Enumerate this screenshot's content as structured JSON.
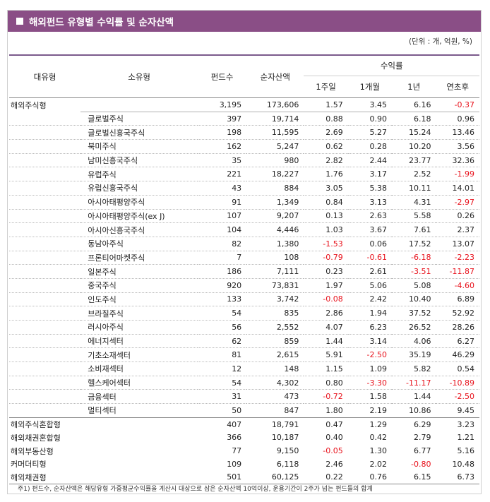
{
  "title": "해외펀드 유형별 수익률 및 순자산액",
  "unit": "(단위 : 개, 억원, %)",
  "headers": {
    "major": "대유형",
    "minor": "소유형",
    "funds": "펀드수",
    "assets": "순자산액",
    "returns": "수익률",
    "w1": "1주일",
    "m1": "1개월",
    "y1": "1년",
    "ytd": "연초후"
  },
  "rows": [
    {
      "major": "해외주식형",
      "minor": "",
      "funds": "3,195",
      "assets": "173,606",
      "w1": "1.57",
      "m1": "3.45",
      "y1": "6.16",
      "ytd": "-0.37"
    },
    {
      "major": "",
      "minor": "글로벌주식",
      "funds": "397",
      "assets": "19,714",
      "w1": "0.88",
      "m1": "0.90",
      "y1": "6.18",
      "ytd": "0.96"
    },
    {
      "major": "",
      "minor": "글로벌신흥국주식",
      "funds": "198",
      "assets": "11,595",
      "w1": "2.69",
      "m1": "5.27",
      "y1": "15.24",
      "ytd": "13.46"
    },
    {
      "major": "",
      "minor": "북미주식",
      "funds": "162",
      "assets": "5,247",
      "w1": "0.62",
      "m1": "0.28",
      "y1": "10.20",
      "ytd": "3.56"
    },
    {
      "major": "",
      "minor": "남미신흥국주식",
      "funds": "35",
      "assets": "980",
      "w1": "2.82",
      "m1": "2.44",
      "y1": "23.77",
      "ytd": "32.36"
    },
    {
      "major": "",
      "minor": "유럽주식",
      "funds": "221",
      "assets": "18,227",
      "w1": "1.76",
      "m1": "3.17",
      "y1": "2.52",
      "ytd": "-1.99"
    },
    {
      "major": "",
      "minor": "유럽신흥국주식",
      "funds": "43",
      "assets": "884",
      "w1": "3.05",
      "m1": "5.38",
      "y1": "10.11",
      "ytd": "14.01"
    },
    {
      "major": "",
      "minor": "아시아태평양주식",
      "funds": "91",
      "assets": "1,349",
      "w1": "0.84",
      "m1": "3.13",
      "y1": "4.31",
      "ytd": "-2.97"
    },
    {
      "major": "",
      "minor": "아시아태평양주식(ex J)",
      "funds": "107",
      "assets": "9,207",
      "w1": "0.13",
      "m1": "2.63",
      "y1": "5.58",
      "ytd": "0.26"
    },
    {
      "major": "",
      "minor": "아시아신흥국주식",
      "funds": "104",
      "assets": "4,446",
      "w1": "1.03",
      "m1": "3.67",
      "y1": "7.61",
      "ytd": "2.37"
    },
    {
      "major": "",
      "minor": "동남아주식",
      "funds": "82",
      "assets": "1,380",
      "w1": "-1.53",
      "m1": "0.06",
      "y1": "17.52",
      "ytd": "13.07"
    },
    {
      "major": "",
      "minor": "프론티어마켓주식",
      "funds": "7",
      "assets": "108",
      "w1": "-0.79",
      "m1": "-0.61",
      "y1": "-6.18",
      "ytd": "-2.23"
    },
    {
      "major": "",
      "minor": "일본주식",
      "funds": "186",
      "assets": "7,111",
      "w1": "0.23",
      "m1": "2.61",
      "y1": "-3.51",
      "ytd": "-11.87"
    },
    {
      "major": "",
      "minor": "중국주식",
      "funds": "920",
      "assets": "73,831",
      "w1": "1.97",
      "m1": "5.06",
      "y1": "5.08",
      "ytd": "-4.60"
    },
    {
      "major": "",
      "minor": "인도주식",
      "funds": "133",
      "assets": "3,742",
      "w1": "-0.08",
      "m1": "2.42",
      "y1": "10.40",
      "ytd": "6.89"
    },
    {
      "major": "",
      "minor": "브라질주식",
      "funds": "54",
      "assets": "835",
      "w1": "2.86",
      "m1": "1.94",
      "y1": "37.52",
      "ytd": "52.92"
    },
    {
      "major": "",
      "minor": "러시아주식",
      "funds": "56",
      "assets": "2,552",
      "w1": "4.07",
      "m1": "6.23",
      "y1": "26.52",
      "ytd": "28.26"
    },
    {
      "major": "",
      "minor": "에너지섹터",
      "funds": "62",
      "assets": "859",
      "w1": "1.44",
      "m1": "3.14",
      "y1": "4.06",
      "ytd": "6.27"
    },
    {
      "major": "",
      "minor": "기초소재섹터",
      "funds": "81",
      "assets": "2,615",
      "w1": "5.91",
      "m1": "-2.50",
      "y1": "35.19",
      "ytd": "46.29"
    },
    {
      "major": "",
      "minor": "소비재섹터",
      "funds": "12",
      "assets": "148",
      "w1": "1.15",
      "m1": "1.09",
      "y1": "5.82",
      "ytd": "0.54"
    },
    {
      "major": "",
      "minor": "헬스케어섹터",
      "funds": "54",
      "assets": "4,302",
      "w1": "0.80",
      "m1": "-3.30",
      "y1": "-11.17",
      "ytd": "-10.89"
    },
    {
      "major": "",
      "minor": "금융섹터",
      "funds": "31",
      "assets": "473",
      "w1": "-0.72",
      "m1": "1.58",
      "y1": "1.44",
      "ytd": "-2.50"
    },
    {
      "major": "",
      "minor": "멀티섹터",
      "funds": "50",
      "assets": "847",
      "w1": "1.80",
      "m1": "2.19",
      "y1": "10.86",
      "ytd": "9.45"
    },
    {
      "major": "해외주식혼합형",
      "minor": "",
      "funds": "407",
      "assets": "18,791",
      "w1": "0.47",
      "m1": "1.29",
      "y1": "6.29",
      "ytd": "3.23"
    },
    {
      "major": "해외채권혼합형",
      "minor": "",
      "funds": "366",
      "assets": "10,187",
      "w1": "0.40",
      "m1": "0.42",
      "y1": "2.79",
      "ytd": "1.21"
    },
    {
      "major": "해외부동산형",
      "minor": "",
      "funds": "77",
      "assets": "9,150",
      "w1": "-0.05",
      "m1": "1.30",
      "y1": "6.77",
      "ytd": "5.16"
    },
    {
      "major": "커머더티형",
      "minor": "",
      "funds": "109",
      "assets": "6,118",
      "w1": "2.46",
      "m1": "2.02",
      "y1": "-0.80",
      "ytd": "10.48"
    },
    {
      "major": "해외채권형",
      "minor": "",
      "funds": "501",
      "assets": "60,125",
      "w1": "0.22",
      "m1": "0.76",
      "y1": "6.15",
      "ytd": "6.73"
    }
  ],
  "footnote": "주1) 펀드수, 순자산액은 해당유형 가중평균수익률을 계산시 대상으로 삼은 순자산액 10억이상, 운용기간이 2주가 넘는 펀드들의 합계",
  "colors": {
    "header_bg": "#8a4e86",
    "negative": "#e8111b"
  }
}
